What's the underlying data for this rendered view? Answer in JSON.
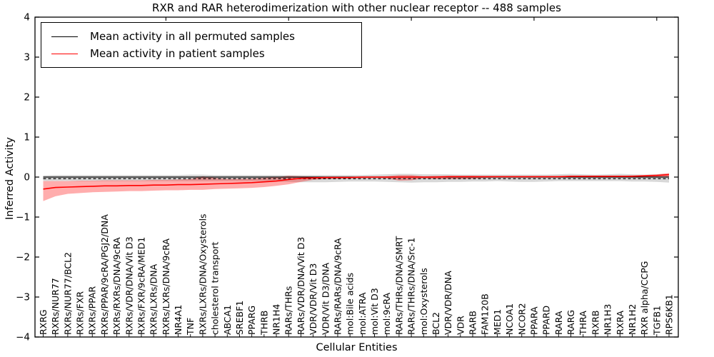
{
  "chart_data": {
    "type": "line",
    "title": "RXR and RAR heterodimerization with other nuclear receptor -- 488 samples",
    "xlabel": "Cellular Entities",
    "ylabel": "Inferred Activity",
    "ylim": [
      -4,
      4
    ],
    "yticks": [
      4,
      3,
      2,
      1,
      0,
      -1,
      -2,
      -3,
      -4
    ],
    "ytick_labels": [
      "4",
      "3",
      "2",
      "1",
      "0",
      "−1",
      "−2",
      "−3",
      "−4"
    ],
    "grid": false,
    "legend_position": "upper left",
    "legend": [
      {
        "label": "Mean activity in all permuted samples",
        "color": "#000000"
      },
      {
        "label": "Mean activity in patient samples",
        "color": "#ff0000"
      }
    ],
    "categories": [
      "RXRG",
      "RXRs/NUR77",
      "RXRs/NUR77/BCL2",
      "RXRs/FXR",
      "RXRs/PPAR",
      "RXRs/PPAR/9cRA/PGJ2/DNA",
      "RXRs/RXRs/DNA/9cRA",
      "RXRs/VDR/DNA/Vit D3",
      "RXRs/FXR/9cRA/MED1",
      "RXRs/LXRs/DNA",
      "RXRs/LXRs/DNA/9cRA",
      "NR4A1",
      "TNF",
      "RXRs/LXRs/DNA/Oxysterols",
      "cholesterol transport",
      "ABCA1",
      "SREBF1",
      "PPARG",
      "THRB",
      "NR1H4",
      "RARs/THRs",
      "RARs/VDR/DNA/Vit D3",
      "VDR/VDR/Vit D3",
      "VDR/Vit D3/DNA",
      "RARs/RARs/DNA/9cRA",
      "mol:Bile acids",
      "mol:ATRA",
      "mol:Vit D3",
      "mol:9cRA",
      "RARs/THRs/DNA/SMRT",
      "RARs/THRs/DNA/Src-1",
      "mol:Oxysterols",
      "BCL2",
      "VDR/VDR/DNA",
      "VDR",
      "RARB",
      "FAM120B",
      "MED1",
      "NCOA1",
      "NCOR2",
      "PPARA",
      "PPARD",
      "RARA",
      "RARG",
      "THRA",
      "RXRB",
      "NR1H3",
      "RXRA",
      "NR1H2",
      "RXR alpha/CCPG",
      "TGFB1",
      "RPS6KB1"
    ],
    "series": [
      {
        "name": "Mean activity in all permuted samples",
        "color": "#000000",
        "values": [
          0,
          0,
          0,
          0,
          0,
          0,
          0,
          0,
          0,
          0,
          0,
          0,
          0,
          0,
          0,
          0,
          0,
          0,
          0,
          0,
          0,
          0,
          0,
          0,
          0,
          0,
          0,
          0,
          0,
          0,
          0,
          0,
          0,
          0,
          0,
          0,
          0,
          0,
          0,
          0,
          0,
          0,
          0,
          0,
          0,
          0,
          0,
          0,
          0,
          0,
          0,
          0
        ],
        "band_upper": [
          0.04,
          0.05,
          0.05,
          0.05,
          0.05,
          0.05,
          0.05,
          0.05,
          0.05,
          0.05,
          0.05,
          0.05,
          0.06,
          0.06,
          0.05,
          0.05,
          0.05,
          0.05,
          0.05,
          0.05,
          0.05,
          0.05,
          0.05,
          0.05,
          0.05,
          0.05,
          0.05,
          0.06,
          0.07,
          0.08,
          0.08,
          0.07,
          0.07,
          0.07,
          0.06,
          0.06,
          0.06,
          0.06,
          0.06,
          0.06,
          0.06,
          0.06,
          0.07,
          0.08,
          0.07,
          0.06,
          0.07,
          0.08,
          0.07,
          0.06,
          0.07,
          0.08
        ],
        "band_lower": [
          -0.1,
          -0.1,
          -0.1,
          -0.1,
          -0.1,
          -0.1,
          -0.1,
          -0.1,
          -0.1,
          -0.1,
          -0.1,
          -0.1,
          -0.1,
          -0.1,
          -0.1,
          -0.1,
          -0.1,
          -0.1,
          -0.1,
          -0.11,
          -0.12,
          -0.13,
          -0.13,
          -0.13,
          -0.12,
          -0.11,
          -0.11,
          -0.11,
          -0.12,
          -0.13,
          -0.14,
          -0.13,
          -0.13,
          -0.12,
          -0.12,
          -0.11,
          -0.11,
          -0.1,
          -0.11,
          -0.12,
          -0.12,
          -0.11,
          -0.1,
          -0.1,
          -0.1,
          -0.1,
          -0.1,
          -0.1,
          -0.11,
          -0.11,
          -0.12,
          -0.14
        ]
      },
      {
        "name": "Mean activity in patient samples",
        "color": "#ff0000",
        "values": [
          -0.3,
          -0.26,
          -0.25,
          -0.24,
          -0.23,
          -0.22,
          -0.22,
          -0.21,
          -0.21,
          -0.2,
          -0.2,
          -0.19,
          -0.19,
          -0.18,
          -0.17,
          -0.16,
          -0.15,
          -0.14,
          -0.12,
          -0.1,
          -0.06,
          -0.03,
          -0.02,
          -0.01,
          -0.01,
          -0.01,
          0.0,
          0.0,
          0.0,
          0.0,
          0.0,
          0.0,
          0.0,
          0.01,
          0.01,
          0.01,
          0.01,
          0.01,
          0.01,
          0.01,
          0.01,
          0.01,
          0.01,
          0.02,
          0.02,
          0.02,
          0.02,
          0.02,
          0.02,
          0.03,
          0.04,
          0.06
        ],
        "band_upper": [
          -0.1,
          -0.1,
          -0.1,
          -0.09,
          -0.09,
          -0.08,
          -0.08,
          -0.08,
          -0.08,
          -0.07,
          -0.07,
          -0.06,
          -0.05,
          0.02,
          -0.02,
          -0.04,
          -0.04,
          -0.03,
          -0.02,
          0.0,
          0.03,
          0.02,
          0.01,
          0.01,
          0.01,
          0.01,
          0.01,
          0.01,
          0.02,
          0.05,
          0.05,
          0.02,
          0.03,
          0.03,
          0.03,
          0.03,
          0.02,
          0.02,
          0.02,
          0.02,
          0.02,
          0.02,
          0.02,
          0.03,
          0.03,
          0.03,
          0.03,
          0.03,
          0.04,
          0.05,
          0.07,
          0.1
        ],
        "band_lower": [
          -0.6,
          -0.48,
          -0.42,
          -0.4,
          -0.38,
          -0.37,
          -0.36,
          -0.35,
          -0.35,
          -0.34,
          -0.33,
          -0.33,
          -0.32,
          -0.32,
          -0.3,
          -0.29,
          -0.28,
          -0.27,
          -0.25,
          -0.22,
          -0.18,
          -0.12,
          -0.07,
          -0.05,
          -0.04,
          -0.03,
          -0.03,
          -0.02,
          -0.03,
          -0.09,
          -0.08,
          -0.03,
          -0.05,
          -0.05,
          -0.05,
          -0.04,
          -0.02,
          -0.01,
          -0.01,
          -0.01,
          -0.01,
          -0.01,
          -0.01,
          -0.01,
          -0.01,
          -0.01,
          -0.01,
          0.0,
          0.0,
          0.0,
          0.01,
          0.0
        ]
      }
    ],
    "reference_line": {
      "value": -0.04,
      "style": "dashed",
      "color": "#000000"
    },
    "colors": {
      "permuted_band": "#999999",
      "patient_band": "#ff0000",
      "axis": "#000000"
    }
  }
}
